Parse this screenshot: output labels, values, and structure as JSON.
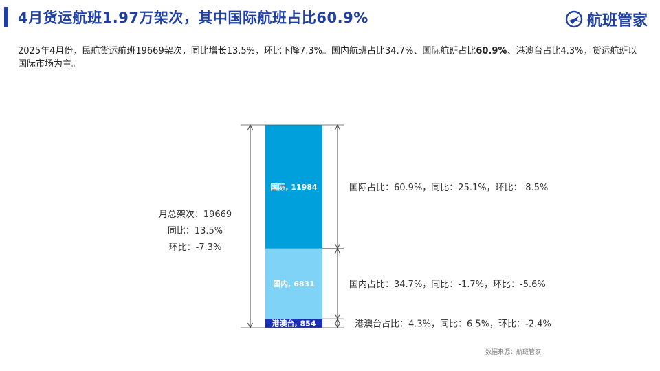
{
  "header": {
    "title": "4月货运航班1.97万架次，其中国际航班占比60.9%",
    "brand": "航班管家"
  },
  "description": {
    "part1": "2025年4月份，民航货运航班19669架次，同比增长13.5%，环比下降7.3%。国内航班占比34.7%、国际航班占比",
    "bold": "60.9%",
    "part2": "、港澳台占比4.3%，货运航班以国际市场为主。"
  },
  "chart_data": {
    "type": "bar",
    "stacked": true,
    "categories": [
      "2025年4月"
    ],
    "series": [
      {
        "name": "港澳台",
        "values": [
          854
        ],
        "color": "#1a2fb5",
        "label": "港澳台, 854",
        "note": "港澳台占比：4.3%，同比：6.5%，环比：-2.4%"
      },
      {
        "name": "国内",
        "values": [
          6831
        ],
        "color": "#7fd3f7",
        "label": "国内, 6831",
        "note": "国内占比：34.7%，同比：-1.7%，环比：-5.6%"
      },
      {
        "name": "国际",
        "values": [
          11984
        ],
        "color": "#00a0dc",
        "label": "国际, 11984",
        "note": "国际占比：60.9%，同比：25.1%，环比：-8.5%"
      }
    ],
    "total": 19669,
    "total_notes": [
      "月总架次：19669",
      "同比：13.5%",
      "环比：-7.3%"
    ]
  },
  "footer": {
    "source": "数据来源：航班管家"
  }
}
